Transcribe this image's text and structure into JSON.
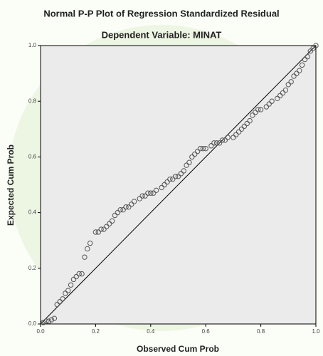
{
  "chart_data": {
    "type": "scatter",
    "title": "Normal P-P Plot of Regression Standardized Residual",
    "subtitle": "Dependent Variable: MINAT",
    "x_label": "Observed Cum Prob",
    "y_label": "Expected Cum Prob",
    "xlim": [
      0,
      1
    ],
    "ylim": [
      0,
      1
    ],
    "xticks": [
      {
        "value": 0,
        "label": "0.0"
      },
      0.2,
      0.4,
      0.6,
      0.8,
      {
        "value": 1,
        "label": "1.0"
      }
    ],
    "yticks": [
      {
        "value": 0,
        "label": "0.0"
      },
      0.2,
      0.4,
      0.6,
      0.8,
      {
        "value": 1,
        "label": "1.0"
      }
    ],
    "color": "#555555",
    "x": [
      0.01,
      0.02,
      0.03,
      0.04,
      0.05,
      0.06,
      0.07,
      0.08,
      0.09,
      0.1,
      0.11,
      0.12,
      0.13,
      0.14,
      0.15,
      0.16,
      0.17,
      0.18,
      0.2,
      0.21,
      0.22,
      0.23,
      0.24,
      0.25,
      0.26,
      0.27,
      0.28,
      0.29,
      0.3,
      0.31,
      0.32,
      0.33,
      0.34,
      0.36,
      0.37,
      0.38,
      0.39,
      0.4,
      0.41,
      0.42,
      0.44,
      0.45,
      0.46,
      0.47,
      0.48,
      0.49,
      0.5,
      0.51,
      0.52,
      0.53,
      0.54,
      0.55,
      0.56,
      0.57,
      0.58,
      0.59,
      0.6,
      0.62,
      0.63,
      0.64,
      0.65,
      0.66,
      0.67,
      0.68,
      0.7,
      0.71,
      0.72,
      0.73,
      0.74,
      0.75,
      0.76,
      0.77,
      0.78,
      0.79,
      0.8,
      0.82,
      0.83,
      0.84,
      0.86,
      0.87,
      0.88,
      0.89,
      0.9,
      0.91,
      0.92,
      0.93,
      0.94,
      0.95,
      0.96,
      0.97,
      0.98,
      0.99,
      1.0
    ],
    "values": [
      0.005,
      0.01,
      0.01,
      0.015,
      0.02,
      0.07,
      0.08,
      0.09,
      0.11,
      0.12,
      0.14,
      0.16,
      0.17,
      0.18,
      0.18,
      0.24,
      0.27,
      0.29,
      0.33,
      0.33,
      0.34,
      0.34,
      0.35,
      0.36,
      0.37,
      0.39,
      0.4,
      0.41,
      0.41,
      0.42,
      0.42,
      0.43,
      0.44,
      0.45,
      0.46,
      0.46,
      0.47,
      0.47,
      0.47,
      0.48,
      0.49,
      0.5,
      0.51,
      0.52,
      0.52,
      0.53,
      0.53,
      0.54,
      0.55,
      0.57,
      0.58,
      0.6,
      0.61,
      0.62,
      0.63,
      0.63,
      0.63,
      0.64,
      0.65,
      0.65,
      0.65,
      0.66,
      0.66,
      0.67,
      0.67,
      0.68,
      0.69,
      0.7,
      0.71,
      0.72,
      0.73,
      0.75,
      0.76,
      0.77,
      0.77,
      0.78,
      0.79,
      0.8,
      0.81,
      0.82,
      0.83,
      0.84,
      0.86,
      0.87,
      0.89,
      0.9,
      0.91,
      0.93,
      0.95,
      0.96,
      0.98,
      0.99,
      1.0
    ]
  }
}
